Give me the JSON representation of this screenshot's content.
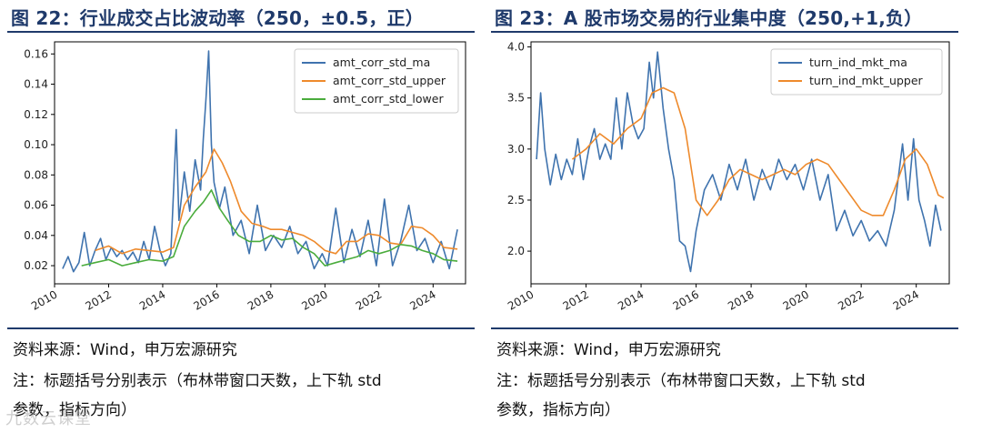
{
  "colors": {
    "title": "#1f3a6b",
    "blue": "#3f73ae",
    "orange": "#ee8a2c",
    "green": "#4aac3c"
  },
  "left": {
    "title": "图 22：行业成交占比波动率（250，±0.5，正）",
    "source": "资料来源：Wind，申万宏源研究",
    "note_line1": "注：标题括号分别表示（布林带窗口天数，上下轨 std",
    "note_line2": "参数，指标方向）"
  },
  "right": {
    "title": "图 23：A 股市场交易的行业集中度（250,+1,负）",
    "source": "资料来源：Wind，申万宏源研究",
    "note_line1": "注：标题括号分别表示（布林带窗口天数，上下轨 std",
    "note_line2": "参数，指标方向）"
  },
  "watermark": "九数云课堂",
  "chart_data": [
    {
      "type": "line",
      "title": "",
      "xlabel": "",
      "ylabel": "",
      "xlim": [
        2010.0,
        2025.2
      ],
      "ylim": [
        0.008,
        0.168
      ],
      "x_ticks": [
        2010,
        2012,
        2014,
        2016,
        2018,
        2020,
        2022,
        2024
      ],
      "x_tick_labels": [
        "2010",
        "2012",
        "2014",
        "2016",
        "2018",
        "2020",
        "2022",
        "2024"
      ],
      "y_ticks": [
        0.02,
        0.04,
        0.06,
        0.08,
        0.1,
        0.12,
        0.14,
        0.16
      ],
      "y_tick_labels": [
        "0.02",
        "0.04",
        "0.06",
        "0.08",
        "0.10",
        "0.12",
        "0.14",
        "0.16"
      ],
      "legend_position": "top-right",
      "series": [
        {
          "name": "amt_corr_std_ma",
          "color": "blue",
          "x": [
            2010.3,
            2010.5,
            2010.7,
            2010.9,
            2011.1,
            2011.3,
            2011.5,
            2011.7,
            2011.9,
            2012.1,
            2012.3,
            2012.5,
            2012.7,
            2012.9,
            2013.1,
            2013.3,
            2013.5,
            2013.7,
            2013.9,
            2014.1,
            2014.3,
            2014.5,
            2014.6,
            2014.8,
            2015.0,
            2015.2,
            2015.4,
            2015.5,
            2015.6,
            2015.7,
            2015.8,
            2015.9,
            2016.1,
            2016.3,
            2016.6,
            2016.9,
            2017.2,
            2017.5,
            2017.8,
            2018.1,
            2018.4,
            2018.7,
            2019.0,
            2019.3,
            2019.6,
            2019.9,
            2020.1,
            2020.4,
            2020.7,
            2021.0,
            2021.3,
            2021.6,
            2021.9,
            2022.2,
            2022.5,
            2022.8,
            2023.1,
            2023.4,
            2023.7,
            2024.0,
            2024.3,
            2024.6,
            2024.9
          ],
          "y": [
            0.018,
            0.026,
            0.016,
            0.022,
            0.042,
            0.02,
            0.03,
            0.038,
            0.024,
            0.032,
            0.026,
            0.03,
            0.024,
            0.029,
            0.022,
            0.036,
            0.024,
            0.046,
            0.03,
            0.02,
            0.028,
            0.11,
            0.05,
            0.082,
            0.056,
            0.09,
            0.07,
            0.104,
            0.13,
            0.162,
            0.1,
            0.075,
            0.058,
            0.072,
            0.04,
            0.05,
            0.028,
            0.06,
            0.03,
            0.04,
            0.032,
            0.046,
            0.028,
            0.036,
            0.018,
            0.028,
            0.02,
            0.058,
            0.022,
            0.044,
            0.026,
            0.05,
            0.02,
            0.064,
            0.02,
            0.036,
            0.06,
            0.03,
            0.038,
            0.022,
            0.036,
            0.018,
            0.044
          ]
        },
        {
          "name": "amt_corr_std_upper",
          "color": "orange",
          "x": [
            2011.5,
            2012.0,
            2012.5,
            2013.0,
            2013.5,
            2014.0,
            2014.4,
            2014.8,
            2015.2,
            2015.6,
            2015.9,
            2016.2,
            2016.5,
            2016.9,
            2017.3,
            2017.7,
            2018.0,
            2018.4,
            2018.8,
            2019.2,
            2019.6,
            2020.0,
            2020.4,
            2020.8,
            2021.2,
            2021.6,
            2022.0,
            2022.4,
            2022.8,
            2023.2,
            2023.6,
            2024.0,
            2024.4,
            2024.9
          ],
          "y": [
            0.03,
            0.033,
            0.028,
            0.031,
            0.03,
            0.029,
            0.032,
            0.06,
            0.072,
            0.082,
            0.097,
            0.088,
            0.076,
            0.056,
            0.048,
            0.046,
            0.044,
            0.044,
            0.042,
            0.04,
            0.036,
            0.03,
            0.028,
            0.036,
            0.036,
            0.041,
            0.04,
            0.035,
            0.034,
            0.046,
            0.045,
            0.04,
            0.032,
            0.031
          ]
        },
        {
          "name": "amt_corr_std_lower",
          "color": "green",
          "x": [
            2011.0,
            2011.5,
            2012.0,
            2012.5,
            2013.0,
            2013.5,
            2014.0,
            2014.4,
            2014.8,
            2015.2,
            2015.5,
            2015.8,
            2016.1,
            2016.4,
            2016.8,
            2017.2,
            2017.6,
            2018.0,
            2018.4,
            2018.8,
            2019.2,
            2019.6,
            2020.0,
            2020.4,
            2020.8,
            2021.2,
            2021.6,
            2022.0,
            2022.4,
            2022.8,
            2023.2,
            2023.6,
            2024.0,
            2024.4,
            2024.9
          ],
          "y": [
            0.02,
            0.022,
            0.024,
            0.02,
            0.022,
            0.024,
            0.023,
            0.026,
            0.046,
            0.056,
            0.062,
            0.07,
            0.058,
            0.05,
            0.04,
            0.036,
            0.036,
            0.04,
            0.037,
            0.038,
            0.032,
            0.028,
            0.02,
            0.022,
            0.024,
            0.026,
            0.03,
            0.028,
            0.03,
            0.034,
            0.033,
            0.03,
            0.028,
            0.024,
            0.023
          ]
        }
      ]
    },
    {
      "type": "line",
      "title": "",
      "xlabel": "",
      "ylabel": "",
      "xlim": [
        2010.0,
        2025.2
      ],
      "ylim": [
        1.68,
        4.05
      ],
      "x_ticks": [
        2010,
        2012,
        2014,
        2016,
        2018,
        2020,
        2022,
        2024
      ],
      "x_tick_labels": [
        "2010",
        "2012",
        "2014",
        "2016",
        "2018",
        "2020",
        "2022",
        "2024"
      ],
      "y_ticks": [
        2.0,
        2.5,
        3.0,
        3.5,
        4.0
      ],
      "y_tick_labels": [
        "2.0",
        "2.5",
        "3.0",
        "3.5",
        "4.0"
      ],
      "legend_position": "top-right",
      "series": [
        {
          "name": "turn_ind_mkt_ma",
          "color": "blue",
          "x": [
            2010.2,
            2010.35,
            2010.5,
            2010.7,
            2010.9,
            2011.1,
            2011.3,
            2011.5,
            2011.7,
            2011.9,
            2012.1,
            2012.3,
            2012.5,
            2012.7,
            2012.9,
            2013.1,
            2013.3,
            2013.5,
            2013.7,
            2013.9,
            2014.1,
            2014.3,
            2014.45,
            2014.6,
            2014.8,
            2015.0,
            2015.2,
            2015.4,
            2015.6,
            2015.8,
            2016.0,
            2016.3,
            2016.6,
            2016.9,
            2017.2,
            2017.5,
            2017.8,
            2018.1,
            2018.4,
            2018.7,
            2019.0,
            2019.3,
            2019.6,
            2019.9,
            2020.2,
            2020.5,
            2020.8,
            2021.1,
            2021.4,
            2021.7,
            2022.0,
            2022.3,
            2022.6,
            2022.9,
            2023.2,
            2023.5,
            2023.7,
            2023.9,
            2024.1,
            2024.3,
            2024.5,
            2024.7,
            2024.9
          ],
          "y": [
            2.9,
            3.55,
            3.0,
            2.65,
            2.95,
            2.7,
            2.9,
            2.75,
            3.1,
            2.7,
            3.0,
            3.2,
            2.9,
            3.05,
            2.9,
            3.5,
            3.0,
            3.55,
            3.25,
            3.1,
            3.2,
            3.85,
            3.5,
            3.95,
            3.4,
            3.0,
            2.7,
            2.1,
            2.05,
            1.8,
            2.2,
            2.6,
            2.75,
            2.5,
            2.85,
            2.6,
            2.9,
            2.5,
            2.8,
            2.6,
            2.9,
            2.7,
            2.85,
            2.6,
            2.9,
            2.5,
            2.75,
            2.2,
            2.4,
            2.15,
            2.3,
            2.1,
            2.2,
            2.05,
            2.4,
            3.05,
            2.5,
            3.1,
            2.5,
            2.3,
            2.05,
            2.45,
            2.2
          ]
        },
        {
          "name": "turn_ind_mkt_upper",
          "color": "orange",
          "x": [
            2011.5,
            2012.0,
            2012.5,
            2013.0,
            2013.5,
            2014.0,
            2014.4,
            2014.8,
            2015.2,
            2015.6,
            2016.0,
            2016.4,
            2016.8,
            2017.2,
            2017.6,
            2018.0,
            2018.4,
            2018.8,
            2019.2,
            2019.6,
            2020.0,
            2020.4,
            2020.8,
            2021.2,
            2021.6,
            2022.0,
            2022.4,
            2022.8,
            2023.2,
            2023.6,
            2024.0,
            2024.4,
            2024.8,
            2025.0
          ],
          "y": [
            2.9,
            3.0,
            3.15,
            3.05,
            3.2,
            3.3,
            3.55,
            3.6,
            3.55,
            3.2,
            2.5,
            2.35,
            2.5,
            2.7,
            2.8,
            2.75,
            2.7,
            2.75,
            2.8,
            2.75,
            2.85,
            2.9,
            2.85,
            2.7,
            2.55,
            2.4,
            2.35,
            2.35,
            2.6,
            2.9,
            3.0,
            2.85,
            2.55,
            2.52
          ]
        }
      ]
    }
  ]
}
